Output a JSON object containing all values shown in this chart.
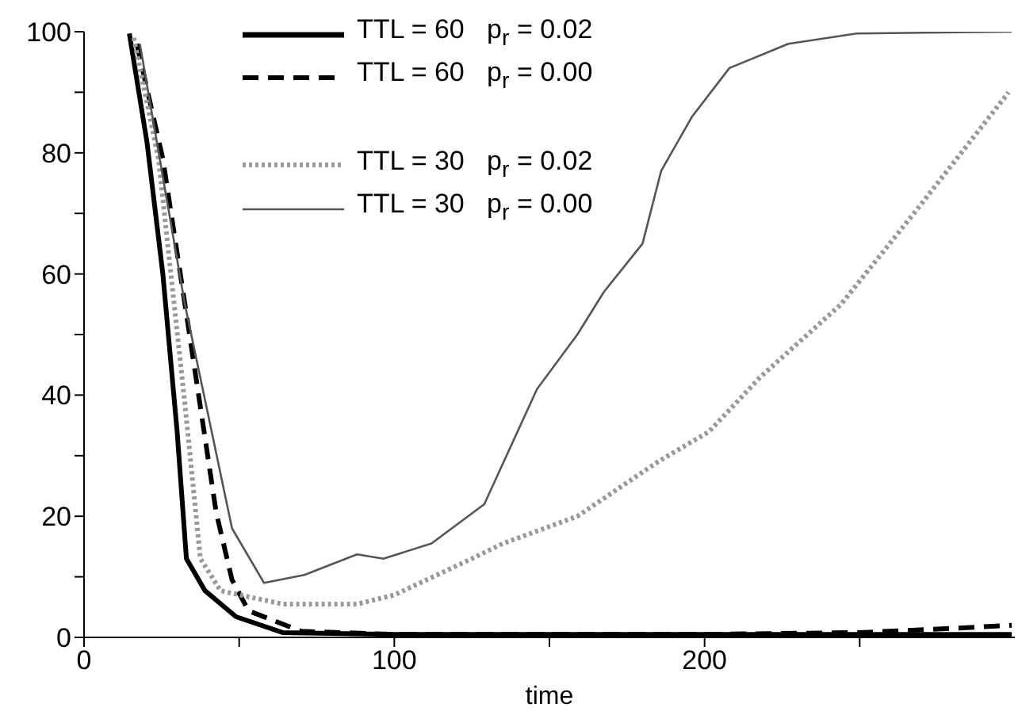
{
  "chart_data": {
    "type": "line",
    "xlabel": "time",
    "xlim": [
      0,
      300
    ],
    "xticks": [
      0,
      {
        "value": 50,
        "label": null
      },
      100,
      {
        "value": 150,
        "label": null
      },
      200,
      {
        "value": 250,
        "label": null
      }
    ],
    "ylim": [
      0,
      100
    ],
    "yticks": [
      0,
      {
        "value": 10,
        "label": null
      },
      20,
      {
        "value": 30,
        "label": null
      },
      40,
      {
        "value": 50,
        "label": null
      },
      60,
      {
        "value": 70,
        "label": null
      },
      80,
      {
        "value": 90,
        "label": null
      },
      100
    ],
    "grid": false,
    "legend": "top",
    "marker": "none",
    "series": [
      {
        "name": "TTL = 60   p$_{r}$ = 0.02",
        "color": "#000000",
        "line_style": "solid",
        "x": [
          14.6,
          20.3,
          25.4,
          30,
          33,
          39,
          49,
          64,
          100,
          150,
          200,
          250,
          299
        ],
        "values": [
          99.7,
          81.7,
          60,
          34,
          13,
          7.7,
          3.4,
          0.8,
          0.5,
          0.5,
          0.5,
          0.5,
          0.5
        ]
      },
      {
        "name": "TTL = 60   p$_{r}$ = 0.00",
        "color": "#000000",
        "line_style": "dashed",
        "x": [
          17,
          25.4,
          34,
          42.6,
          47.7,
          53,
          70,
          100,
          150,
          200,
          250,
          280,
          299
        ],
        "values": [
          98,
          79,
          50,
          20.6,
          9.5,
          4.4,
          1,
          0.5,
          0.5,
          0.5,
          0.8,
          1.5,
          2
        ]
      },
      {
        "name": "TTL = 30   p$_{r}$ = 0.02",
        "color": "#999999",
        "line_style": "dotted",
        "x": [
          16,
          24,
          32.5,
          37.5,
          44,
          64,
          88,
          100,
          125,
          135,
          159,
          185,
          201.5,
          218,
          244,
          269,
          298
        ],
        "values": [
          99,
          79,
          38.6,
          13,
          7.7,
          5.5,
          5.5,
          7,
          13,
          15.5,
          20,
          29,
          34,
          43,
          55,
          71,
          90
        ]
      },
      {
        "name": "TTL = 30   p$_{r}$ = 0.00",
        "color": "#555555",
        "line_style": "solid",
        "x": [
          18,
          32.5,
          47.7,
          58,
          71,
          88,
          96.5,
          112,
          129,
          146,
          159,
          167.5,
          180,
          186,
          196,
          208,
          227,
          249,
          299
        ],
        "values": [
          98,
          55,
          18,
          9,
          10.3,
          13.7,
          13,
          15.5,
          22,
          41,
          50,
          57,
          65,
          77,
          86,
          94,
          98,
          99.7,
          100
        ]
      }
    ]
  }
}
